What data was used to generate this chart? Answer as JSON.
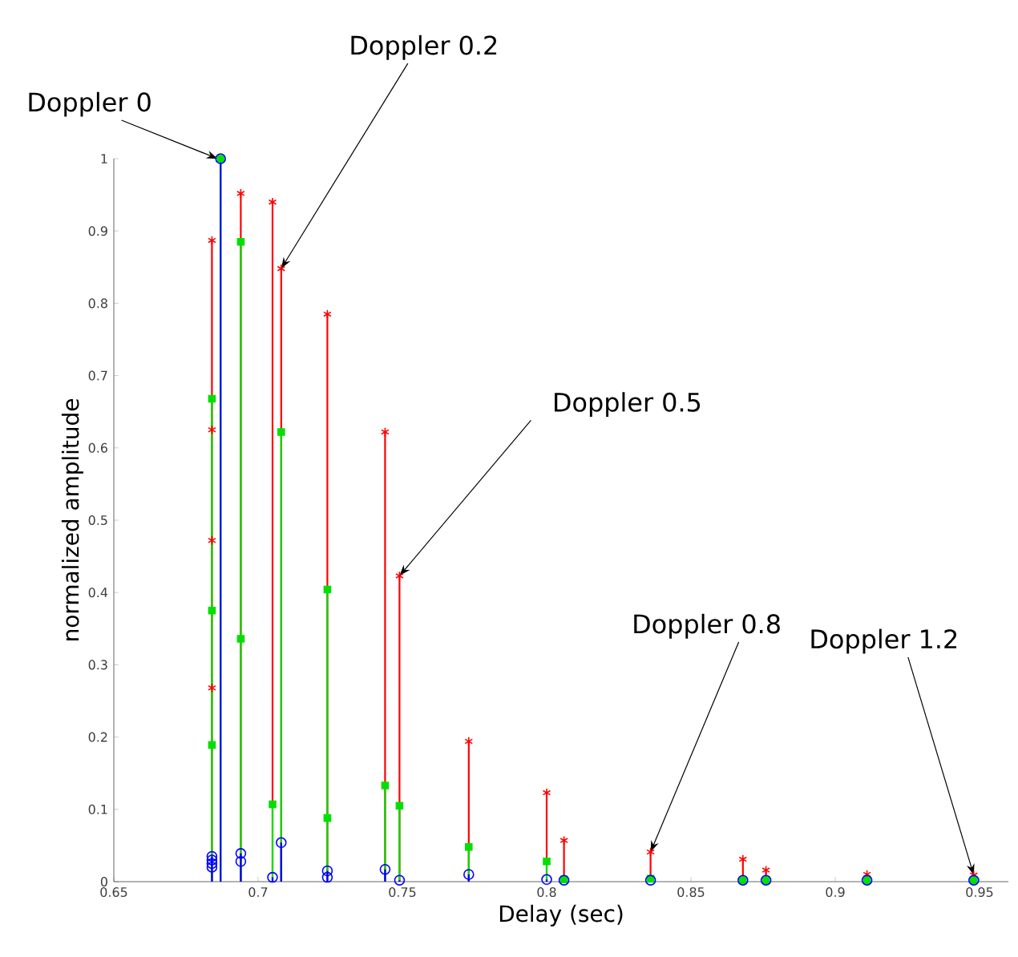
{
  "chart_data": {
    "type": "lollipop",
    "xlabel": "Delay (sec)",
    "ylabel": "normalized amplitude",
    "xlim": [
      0.65,
      0.96
    ],
    "ylim": [
      0,
      1
    ],
    "xticks": [
      0.65,
      0.7,
      0.75,
      0.8,
      0.85,
      0.9,
      0.95
    ],
    "yticks": [
      0,
      0.1,
      0.2,
      0.3,
      0.4,
      0.5,
      0.6,
      0.7,
      0.8,
      0.9,
      1
    ],
    "grid": false,
    "series": [
      {
        "color": "#ff0000",
        "marker": "cross",
        "x": [
          0.684,
          0.684,
          0.684,
          0.684,
          0.694,
          0.705,
          0.708,
          0.724,
          0.744,
          0.749,
          0.773,
          0.8,
          0.806,
          0.836,
          0.868,
          0.876,
          0.911,
          0.948
        ],
        "values": [
          0.887,
          0.625,
          0.472,
          0.268,
          0.952,
          0.94,
          0.848,
          0.785,
          0.622,
          0.423,
          0.194,
          0.123,
          0.057,
          0.041,
          0.031,
          0.016,
          0.01,
          0.009
        ]
      },
      {
        "color": "#00e000",
        "marker": "square",
        "x": [
          0.684,
          0.684,
          0.684,
          0.687,
          0.694,
          0.694,
          0.705,
          0.708,
          0.724,
          0.724,
          0.744,
          0.749,
          0.773,
          0.8,
          0.806,
          0.836,
          0.868,
          0.876,
          0.911,
          0.948
        ],
        "values": [
          0.668,
          0.375,
          0.189,
          1.0,
          0.885,
          0.336,
          0.107,
          0.622,
          0.404,
          0.088,
          0.133,
          0.105,
          0.048,
          0.028,
          0.003,
          0.004,
          0.002,
          0.002,
          0.002,
          0.002
        ]
      },
      {
        "color": "#0000ff",
        "marker": "circle",
        "x": [
          0.684,
          0.684,
          0.684,
          0.684,
          0.687,
          0.694,
          0.694,
          0.705,
          0.708,
          0.724,
          0.724,
          0.744,
          0.749,
          0.773,
          0.8,
          0.806,
          0.836,
          0.868,
          0.876,
          0.911,
          0.948
        ],
        "values": [
          0.035,
          0.03,
          0.025,
          0.02,
          1.0,
          0.039,
          0.028,
          0.006,
          0.054,
          0.015,
          0.006,
          0.017,
          0.002,
          0.01,
          0.003,
          0.002,
          0.002,
          0.002,
          0.002,
          0.002,
          0.002
        ]
      }
    ],
    "annotations": [
      {
        "text": "Doppler 0",
        "x": 0.686,
        "y": 1.0
      },
      {
        "text": "Doppler 0.2",
        "x": 0.708,
        "y": 0.848
      },
      {
        "text": "Doppler 0.5",
        "x": 0.749,
        "y": 0.423
      },
      {
        "text": "Doppler 0.8",
        "x": 0.836,
        "y": 0.041
      },
      {
        "text": "Doppler 1.2",
        "x": 0.948,
        "y": 0.009
      }
    ]
  }
}
